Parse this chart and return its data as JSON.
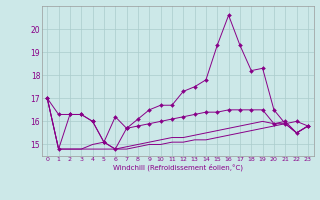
{
  "xlabel": "Windchill (Refroidissement éolien,°C)",
  "bg_color": "#cce8e8",
  "grid_color": "#aacccc",
  "line_color": "#880088",
  "x": [
    0,
    1,
    2,
    3,
    4,
    5,
    6,
    7,
    8,
    9,
    10,
    11,
    12,
    13,
    14,
    15,
    16,
    17,
    18,
    19,
    20,
    21,
    22,
    23
  ],
  "line1": [
    17.0,
    16.3,
    16.3,
    16.3,
    16.0,
    15.1,
    16.2,
    15.7,
    16.1,
    16.5,
    16.7,
    16.7,
    17.3,
    17.5,
    17.8,
    19.3,
    20.6,
    19.3,
    18.2,
    18.3,
    16.5,
    15.9,
    16.0,
    15.8
  ],
  "line2": [
    17.0,
    14.8,
    16.3,
    16.3,
    16.0,
    15.1,
    14.8,
    15.7,
    15.8,
    15.9,
    16.0,
    16.1,
    16.2,
    16.3,
    16.4,
    16.4,
    16.5,
    16.5,
    16.5,
    16.5,
    15.9,
    16.0,
    15.5,
    15.8
  ],
  "line3": [
    17.0,
    14.8,
    14.8,
    14.8,
    15.0,
    15.1,
    14.8,
    14.9,
    15.0,
    15.1,
    15.2,
    15.3,
    15.3,
    15.4,
    15.5,
    15.6,
    15.7,
    15.8,
    15.9,
    16.0,
    15.9,
    15.9,
    15.5,
    15.8
  ],
  "line4": [
    17.0,
    14.8,
    14.8,
    14.8,
    14.8,
    14.8,
    14.8,
    14.8,
    14.9,
    15.0,
    15.0,
    15.1,
    15.1,
    15.2,
    15.2,
    15.3,
    15.4,
    15.5,
    15.6,
    15.7,
    15.8,
    15.9,
    15.5,
    15.8
  ],
  "ylim": [
    14.5,
    21.0
  ],
  "yticks": [
    15,
    16,
    17,
    18,
    19,
    20
  ],
  "xlim": [
    -0.5,
    23.5
  ],
  "xtick_labels": [
    "0",
    "1",
    "2",
    "3",
    "4",
    "5",
    "6",
    "7",
    "8",
    "9",
    "10",
    "11",
    "12",
    "13",
    "14",
    "15",
    "16",
    "17",
    "18",
    "19",
    "20",
    "21",
    "22",
    "23"
  ]
}
